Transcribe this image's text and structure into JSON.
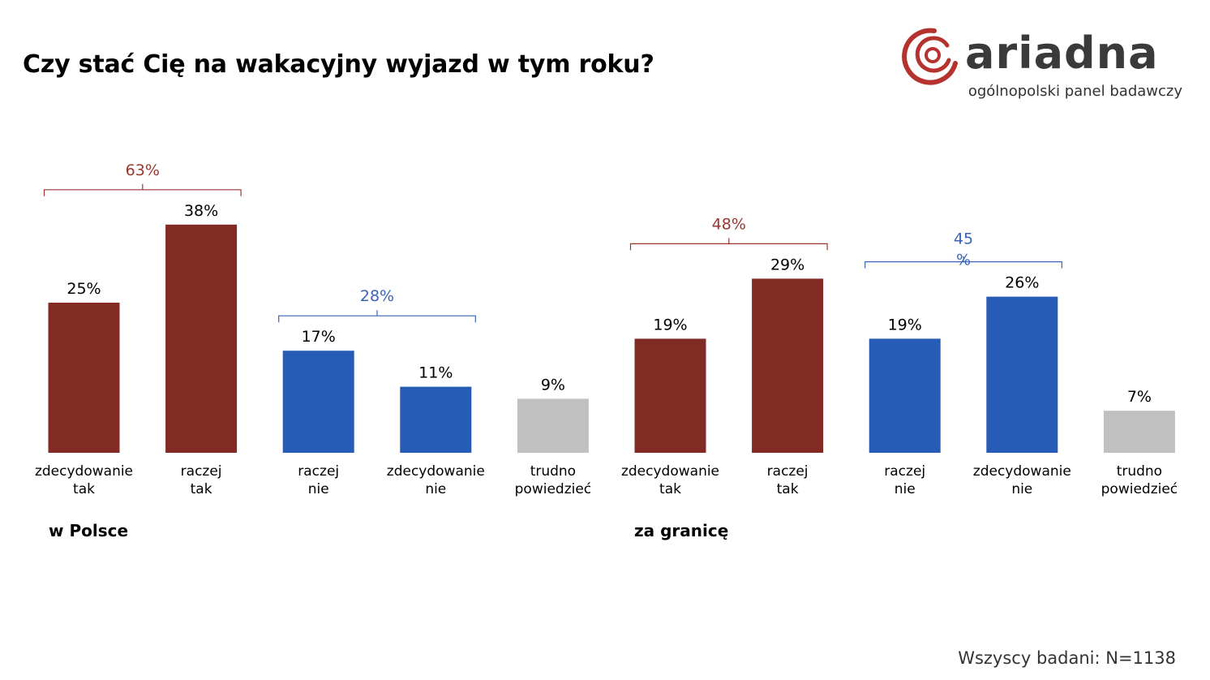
{
  "title": "Czy stać Cię na wakacyjny wyjazd w tym roku?",
  "logo": {
    "name": "ariadna",
    "tagline": "ogólnopolski panel badawczy",
    "color": "#b5322e"
  },
  "footnote": "Wszyscy badani: N=1138",
  "colors": {
    "tak": "#822a24",
    "nie": "#265cb5",
    "trudno": "#c0c0c0"
  },
  "chart_data": {
    "type": "bar",
    "unit": "%",
    "ylim": [
      0,
      40
    ],
    "grid": false,
    "groups": [
      {
        "name": "w Polsce",
        "bars": [
          {
            "label": [
              "zdecydowanie",
              "tak"
            ],
            "value": 25,
            "display": "25%",
            "kind": "tak"
          },
          {
            "label": [
              "raczej",
              "tak"
            ],
            "value": 38,
            "display": "38%",
            "kind": "tak"
          },
          {
            "label": [
              "raczej",
              "nie"
            ],
            "value": 17,
            "display": "17%",
            "kind": "nie"
          },
          {
            "label": [
              "zdecydowanie",
              "nie"
            ],
            "value": 11,
            "display": "11%",
            "kind": "nie"
          },
          {
            "label": [
              "trudno",
              "powiedzieć"
            ],
            "value": 9,
            "display": "9%",
            "kind": "trudno"
          }
        ],
        "brackets": [
          {
            "from": 0,
            "to": 1,
            "label": [
              "63%"
            ],
            "kind": "tak"
          },
          {
            "from": 2,
            "to": 3,
            "label": [
              "28%"
            ],
            "kind": "nie"
          }
        ]
      },
      {
        "name": "za granicę",
        "bars": [
          {
            "label": [
              "zdecydowanie",
              "tak"
            ],
            "value": 19,
            "display": "19%",
            "kind": "tak"
          },
          {
            "label": [
              "raczej",
              "tak"
            ],
            "value": 29,
            "display": "29%",
            "kind": "tak"
          },
          {
            "label": [
              "raczej",
              "nie"
            ],
            "value": 19,
            "display": "19%",
            "kind": "nie"
          },
          {
            "label": [
              "zdecydowanie",
              "nie"
            ],
            "value": 26,
            "display": "26%",
            "kind": "nie"
          },
          {
            "label": [
              "trudno",
              "powiedzieć"
            ],
            "value": 7,
            "display": "7%",
            "kind": "trudno"
          }
        ],
        "brackets": [
          {
            "from": 0,
            "to": 1,
            "label": [
              "48%"
            ],
            "kind": "tak"
          },
          {
            "from": 2,
            "to": 3,
            "label": [
              "45",
              "%"
            ],
            "kind": "nie"
          }
        ]
      }
    ]
  }
}
